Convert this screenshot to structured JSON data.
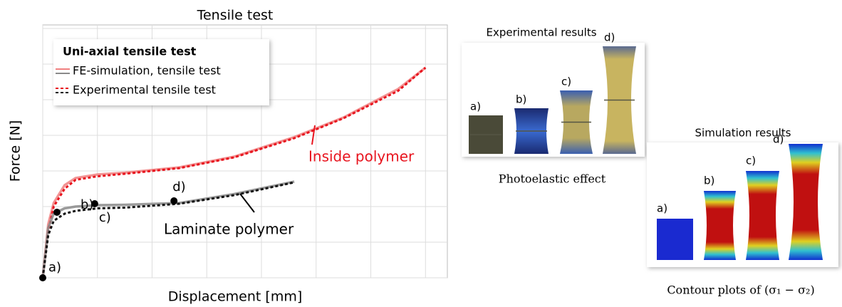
{
  "chart_data": {
    "type": "line",
    "title": "Tensile test",
    "x_label": "Displacement [mm]",
    "y_label": "Force [N]",
    "x": [
      0,
      0.1,
      0.2,
      0.4,
      0.6,
      1,
      1.5,
      2.5,
      3.5,
      4.6,
      5.5,
      6.5,
      7.0
    ],
    "xlim": [
      0,
      7.4
    ],
    "ylim": [
      0,
      7.1
    ],
    "xticks": [
      0,
      1,
      2,
      3,
      4,
      5,
      6,
      7
    ],
    "yticks": [
      0,
      1,
      2,
      3,
      4,
      5,
      6,
      7
    ],
    "grid": true,
    "legend": {
      "title": "Uni-axial tensile test",
      "position": "upper left",
      "entries": [
        {
          "name": "FE-simulation, tensile test",
          "style": "solid"
        },
        {
          "name": "Experimental tensile test",
          "style": "dashed"
        }
      ]
    },
    "groups": [
      {
        "name": "Inside polymer",
        "color": "#e8141e",
        "series": [
          {
            "style": "solid",
            "color": "#f08080",
            "values": [
              0,
              1.5,
              2.1,
              2.6,
              2.8,
              2.9,
              2.95,
              3.1,
              3.4,
              3.95,
              4.5,
              5.3,
              5.9
            ]
          },
          {
            "style": "dashed",
            "color": "#e8141e",
            "values": [
              0,
              1.3,
              2.0,
              2.5,
              2.75,
              2.85,
              2.92,
              3.08,
              3.38,
              3.92,
              4.48,
              5.25,
              5.9
            ]
          }
        ]
      },
      {
        "name": "Laminate polymer",
        "color": "#000000",
        "series": [
          {
            "style": "solid",
            "color": "#8a8a8a",
            "values": [
              0,
              1.4,
              1.8,
              1.95,
              2.0,
              2.04,
              2.05,
              2.1,
              2.35,
              2.7,
              null,
              null,
              null
            ]
          },
          {
            "style": "dashed",
            "color": "#111111",
            "values": [
              0,
              1.2,
              1.6,
              1.8,
              1.88,
              1.95,
              1.97,
              2.08,
              2.32,
              2.68,
              null,
              null,
              null
            ]
          }
        ]
      }
    ],
    "points": [
      {
        "label": "a)",
        "x": 0,
        "y": 0
      },
      {
        "label": "b)",
        "x": 0.26,
        "y": 1.84
      },
      {
        "label": "c)",
        "x": 0.95,
        "y": 2.08
      },
      {
        "label": "d)",
        "x": 2.4,
        "y": 2.16
      }
    ]
  },
  "panels": {
    "experimental": {
      "title": "Experimental results",
      "labels": [
        "a)",
        "b)",
        "c)",
        "d)"
      ],
      "caption": "Photoelastic effect"
    },
    "simulation": {
      "title": "Simulation results",
      "labels": [
        "a)",
        "b)",
        "c)",
        "d)"
      ],
      "caption": "Contour plots of (σ₁ − σ₂)"
    }
  }
}
